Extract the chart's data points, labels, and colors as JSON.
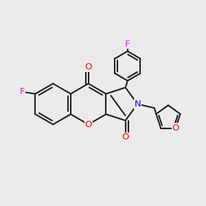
{
  "background_color": "#ebebeb",
  "bond_color": "#1a1a1a",
  "bond_width": 1.5,
  "atom_colors": {
    "O": "#ff0000",
    "N": "#0000ff",
    "F": "#ff00ff"
  },
  "font_size": 9.5
}
